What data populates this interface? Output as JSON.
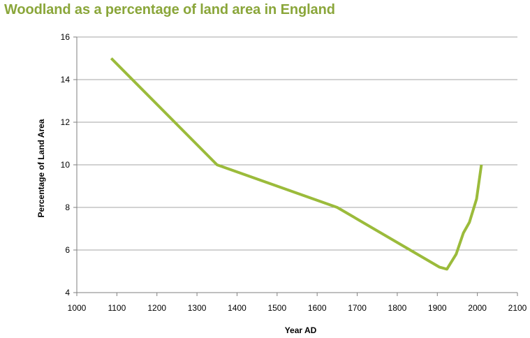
{
  "chart_data": {
    "type": "line",
    "title": "Woodland as a percentage of land area in England",
    "xlabel": "Year AD",
    "ylabel": "Percentage of Land Area",
    "xlim": [
      1000,
      2100
    ],
    "ylim": [
      4,
      16
    ],
    "xticks": [
      1000,
      1100,
      1200,
      1300,
      1400,
      1500,
      1600,
      1700,
      1800,
      1900,
      2000,
      2100
    ],
    "yticks": [
      4,
      6,
      8,
      10,
      12,
      14,
      16
    ],
    "grid": true,
    "legend": "none",
    "series": [
      {
        "color": "#9bbb3b",
        "x": [
          1086,
          1350,
          1650,
          1905,
          1924,
          1947,
          1965,
          1980,
          1998,
          2010
        ],
        "y": [
          15,
          10,
          8,
          5.2,
          5.1,
          5.8,
          6.8,
          7.3,
          8.4,
          10
        ]
      }
    ]
  },
  "colors": {
    "title": "#8aa63a",
    "line": "#9bbb3b",
    "gridline": "#a6a6a6",
    "axis": "#7f7f7f"
  }
}
